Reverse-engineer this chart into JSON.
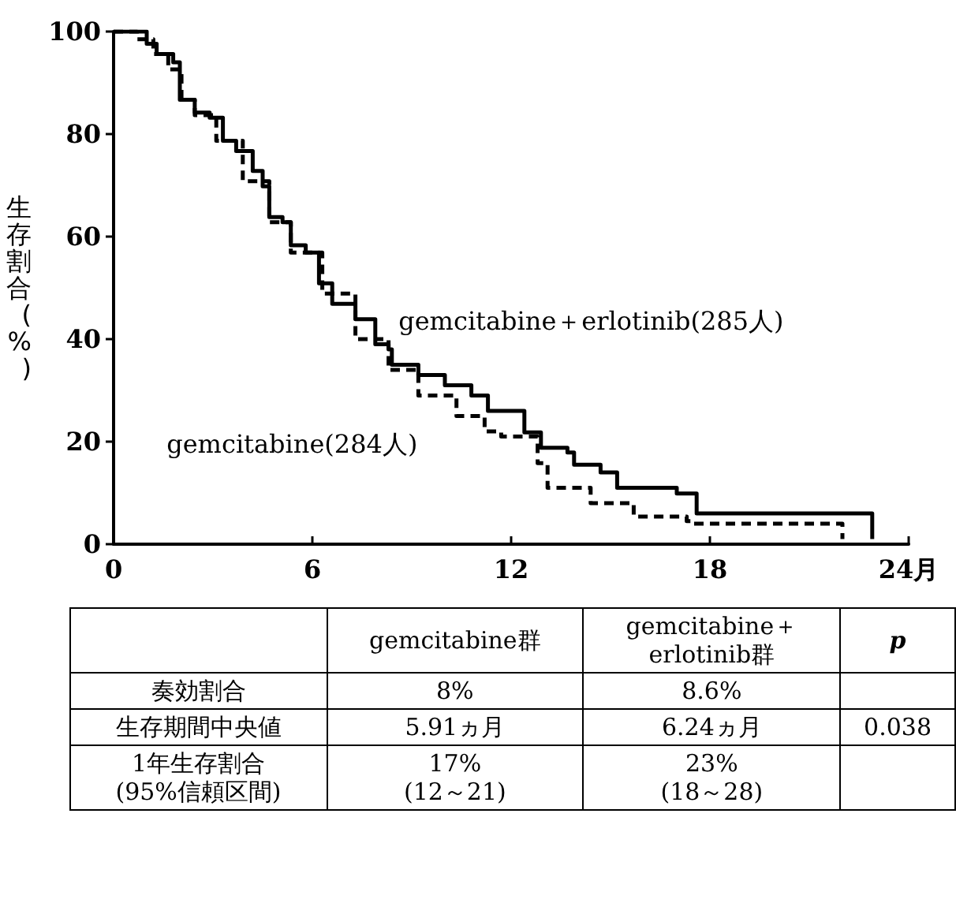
{
  "chart_data": {
    "type": "step",
    "ylabel": "生存割合(%)",
    "xlim": [
      0,
      24
    ],
    "ylim": [
      0,
      100
    ],
    "xticks": [
      0,
      6,
      12,
      18,
      {
        "value": 24,
        "label": "24月"
      }
    ],
    "yticks": [
      0,
      20,
      40,
      60,
      80,
      100
    ],
    "series": [
      {
        "name": "gemcitabine＋erlotinib(285人)",
        "color": "#000000",
        "line_style": "solid",
        "x": [
          0,
          0.6,
          1.0,
          1.3,
          1.8,
          2.0,
          2.45,
          2.9,
          3.3,
          3.7,
          4.2,
          4.5,
          4.7,
          5.1,
          5.35,
          5.8,
          6.2,
          6.6,
          7.3,
          7.9,
          8.3,
          8.4,
          9.2,
          10.0,
          10.8,
          11.3,
          12.4,
          12.9,
          13.7,
          13.9,
          14.7,
          15.2,
          17.0,
          17.6,
          22.9,
          22.9
        ],
        "values": [
          100,
          100,
          97.6,
          95.6,
          94,
          86.7,
          84.2,
          83.2,
          78.7,
          76.7,
          72.8,
          69.8,
          63.8,
          62.8,
          58.3,
          56.9,
          50.9,
          46.9,
          43.9,
          39,
          38,
          35,
          33,
          31,
          29,
          26,
          21.8,
          18.8,
          17.9,
          15.5,
          14,
          11,
          9.9,
          6,
          6,
          1
        ]
      },
      {
        "name": "gemcitabine(284人)",
        "color": "#000000",
        "line_style": "dashed",
        "x": [
          0,
          0.5,
          0.7,
          1.2,
          1.65,
          2.05,
          2.45,
          3.1,
          3.9,
          4.7,
          5.35,
          6.3,
          7.3,
          8.3,
          9.2,
          10.35,
          11.2,
          11.7,
          12.8,
          13.1,
          14.4,
          15.7,
          17.3,
          17.5,
          22.0,
          22.0
        ],
        "values": [
          100,
          100,
          98.5,
          95.6,
          92.6,
          86.7,
          83.7,
          78.7,
          70.8,
          62.8,
          56.9,
          48.9,
          40,
          34,
          29,
          25,
          22,
          21,
          15.8,
          11,
          8,
          5.4,
          4.5,
          4,
          4,
          1
        ]
      }
    ],
    "annotations": [
      "gemcitabine群",
      "gemcitabine＋\nerlotinib群",
      "p",
      "奏効割合",
      "8%",
      "8.6%",
      "生存期間中央値",
      "5.91ヵ月",
      "6.24ヵ月",
      "0.038",
      "1年生存割合\n(95%信頼区間)",
      "17%\n(12～21)",
      "23%\n(18～28)"
    ]
  }
}
